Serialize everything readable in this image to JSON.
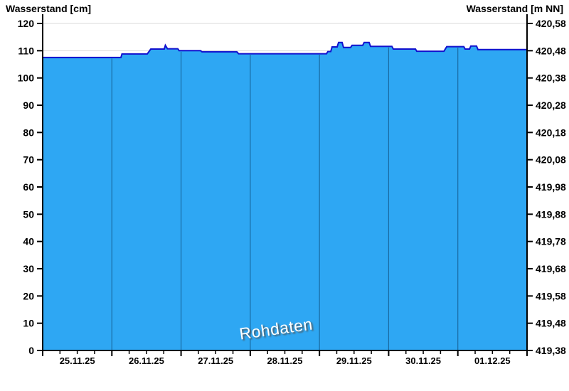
{
  "header": {
    "title_left": "Wasserstand [cm]",
    "title_right": "Wasserstand [m NN]"
  },
  "chart_data": {
    "type": "area",
    "title": "",
    "left_axis_label": "Wasserstand [cm]",
    "right_axis_label": "Wasserstand [m NN]",
    "watermark": "Rohdaten",
    "x": {
      "labels": [
        "25.11.25",
        "26.11.25",
        "27.11.25",
        "28.11.25",
        "29.11.25",
        "30.11.25",
        "01.12.25"
      ],
      "range_days": [
        0,
        7
      ],
      "minor_ticks_per_day": 4
    },
    "y_left": {
      "unit": "cm",
      "range": [
        0,
        120
      ],
      "ticks": [
        120,
        110,
        100,
        90,
        80,
        70,
        60,
        50,
        40,
        30,
        20,
        10,
        0
      ]
    },
    "y_right": {
      "unit": "m NN",
      "range": [
        419.38,
        420.58
      ],
      "tick_labels": [
        "420,58",
        "420,48",
        "420,38",
        "420,28",
        "420,18",
        "420,08",
        "419,98",
        "419,88",
        "419,78",
        "419,68",
        "419,58",
        "419,48",
        "419,38"
      ]
    },
    "grid": {
      "horizontal_gridlines": true,
      "vertical_day_lines": true,
      "legend": "none"
    },
    "series": [
      {
        "name": "Rohdaten",
        "points_day_cm": [
          [
            0,
            107.5
          ],
          [
            1.131,
            107.5
          ],
          [
            1.146,
            108.8
          ],
          [
            1.511,
            108.8
          ],
          [
            1.562,
            110.6
          ],
          [
            1.757,
            110.6
          ],
          [
            1.773,
            112.0
          ],
          [
            1.804,
            110.7
          ],
          [
            1.953,
            110.7
          ],
          [
            1.973,
            110.0
          ],
          [
            2.282,
            110.0
          ],
          [
            2.302,
            109.6
          ],
          [
            2.806,
            109.6
          ],
          [
            2.832,
            108.9
          ],
          [
            4.101,
            108.9
          ],
          [
            4.122,
            109.7
          ],
          [
            4.163,
            109.7
          ],
          [
            4.183,
            111.4
          ],
          [
            4.255,
            111.4
          ],
          [
            4.276,
            113.0
          ],
          [
            4.327,
            113.0
          ],
          [
            4.348,
            111.2
          ],
          [
            4.451,
            111.2
          ],
          [
            4.471,
            112.0
          ],
          [
            4.626,
            112.0
          ],
          [
            4.646,
            113.0
          ],
          [
            4.718,
            113.0
          ],
          [
            4.739,
            111.6
          ],
          [
            5.047,
            111.6
          ],
          [
            5.068,
            110.6
          ],
          [
            5.387,
            110.6
          ],
          [
            5.407,
            109.8
          ],
          [
            5.798,
            109.8
          ],
          [
            5.839,
            111.5
          ],
          [
            6.086,
            111.5
          ],
          [
            6.106,
            110.6
          ],
          [
            6.168,
            110.6
          ],
          [
            6.188,
            111.7
          ],
          [
            6.27,
            111.7
          ],
          [
            6.291,
            110.4
          ],
          [
            7,
            110.4
          ]
        ]
      }
    ],
    "colors": {
      "fill": "#2EA7F3",
      "line": "#1111CE",
      "day_line": "#1A6CA4",
      "grid": "#D8D8D8",
      "axis": "#000000",
      "watermark_text": "#FFFFFF"
    }
  }
}
